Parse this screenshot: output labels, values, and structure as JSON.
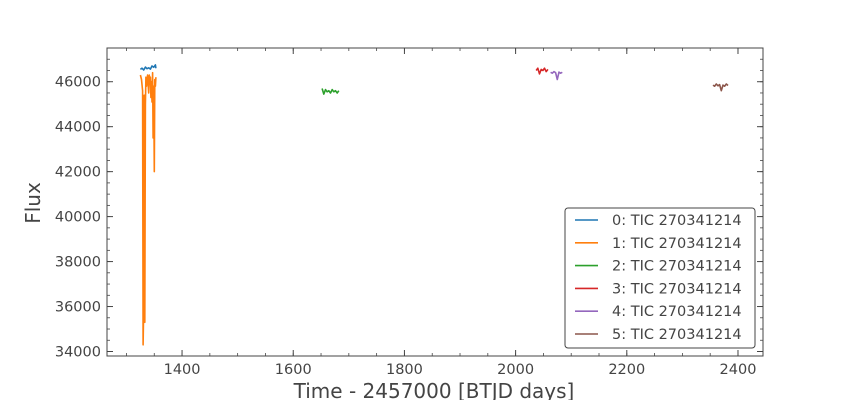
{
  "chart_data": {
    "type": "line",
    "xlabel": "Time - 2457000 [BTJD days]",
    "ylabel": "Flux",
    "xlim": [
      1265,
      2445
    ],
    "ylim": [
      33800,
      47500
    ],
    "x_ticks": [
      1400,
      1600,
      1800,
      2000,
      2200,
      2400
    ],
    "y_ticks": [
      34000,
      36000,
      38000,
      40000,
      42000,
      44000,
      46000
    ],
    "x_tick_labels": [
      "1400",
      "1600",
      "1800",
      "2000",
      "2200",
      "2400"
    ],
    "y_tick_labels": [
      "34000",
      "36000",
      "38000",
      "40000",
      "42000",
      "44000",
      "46000"
    ],
    "grid": false,
    "legend_position": "lower-right",
    "series": [
      {
        "name": "0: TIC 270341214",
        "color": "#1f77b4",
        "x": [
          1325,
          1328,
          1331,
          1334,
          1337,
          1340,
          1343,
          1346,
          1349,
          1352,
          1353
        ],
        "y": [
          46550,
          46600,
          46520,
          46650,
          46580,
          46620,
          46560,
          46700,
          46640,
          46750,
          46600
        ]
      },
      {
        "name": "1: TIC 270341214",
        "color": "#ff7f0e",
        "x": [
          1325,
          1327,
          1329,
          1330,
          1331,
          1332,
          1333,
          1334,
          1335,
          1336,
          1338,
          1340,
          1341,
          1342,
          1343,
          1344,
          1345,
          1346,
          1347,
          1348,
          1349,
          1350,
          1351,
          1352,
          1353
        ],
        "y": [
          46300,
          46100,
          45600,
          34300,
          36000,
          45400,
          35300,
          45000,
          46200,
          45800,
          46300,
          45500,
          46300,
          45900,
          46200,
          45300,
          46000,
          45100,
          46400,
          43500,
          45800,
          42000,
          46100,
          45800,
          46200
        ]
      },
      {
        "name": "2: TIC 270341214",
        "color": "#2ca02c",
        "x": [
          1652,
          1655,
          1658,
          1661,
          1664,
          1667,
          1670,
          1673,
          1676,
          1679,
          1682
        ],
        "y": [
          45700,
          45450,
          45650,
          45550,
          45600,
          45500,
          45650,
          45550,
          45600,
          45500,
          45600
        ]
      },
      {
        "name": "3: TIC 270341214",
        "color": "#d62728",
        "x": [
          2037,
          2040,
          2043,
          2046,
          2049,
          2052,
          2055,
          2058
        ],
        "y": [
          46500,
          46600,
          46350,
          46550,
          46500,
          46600,
          46450,
          46550
        ]
      },
      {
        "name": "4: TIC 270341214",
        "color": "#9467bd",
        "x": [
          2063,
          2066,
          2069,
          2072,
          2075,
          2078,
          2081,
          2084
        ],
        "y": [
          46420,
          46380,
          46450,
          46400,
          46100,
          46430,
          46380,
          46420
        ]
      },
      {
        "name": "5: TIC 270341214",
        "color": "#8c564b",
        "x": [
          2355,
          2358,
          2361,
          2364,
          2367,
          2370,
          2373,
          2376,
          2379,
          2382
        ],
        "y": [
          45850,
          45800,
          45900,
          45820,
          45870,
          45600,
          45850,
          45800,
          45900,
          45830
        ]
      }
    ]
  }
}
